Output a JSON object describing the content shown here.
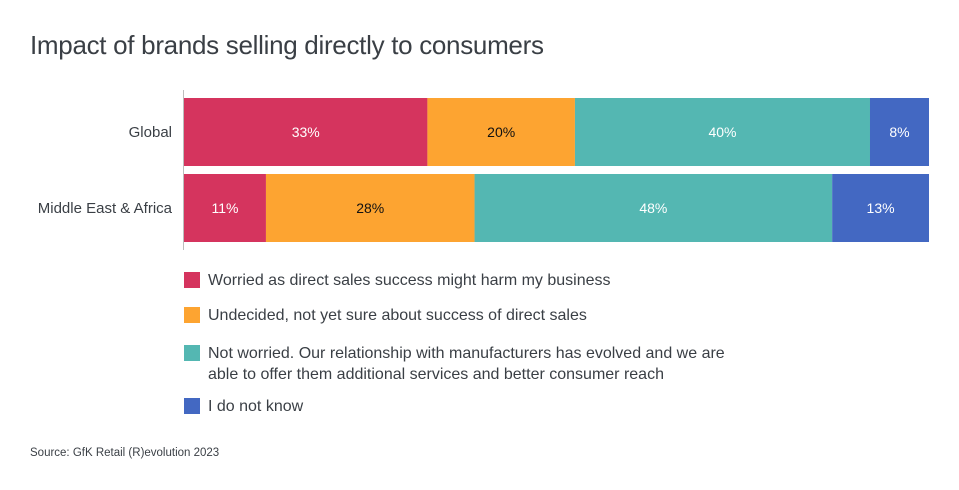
{
  "title": "Impact of brands selling directly to consumers",
  "source": "Source: GfK Retail (R)evolution 2023",
  "chart_data": {
    "type": "bar",
    "orientation": "horizontal",
    "stacked": true,
    "categories": [
      "Global",
      "Middle East & Africa"
    ],
    "series": [
      {
        "name": "Worried as direct sales success might harm my business",
        "values": [
          33,
          11
        ],
        "labels": [
          "33%",
          "11%"
        ],
        "color": "#d5345e",
        "label_color": "#ffffff"
      },
      {
        "name": "Undecided, not yet sure about success of direct sales",
        "values": [
          20,
          28
        ],
        "labels": [
          "20%",
          "28%"
        ],
        "color": "#fda431",
        "label_color": "#111111"
      },
      {
        "name": "Not worried. Our relationship with manufacturers has evolved and we are able to offer them additional services and better consumer reach",
        "values": [
          40,
          48
        ],
        "labels": [
          "40%",
          "48%"
        ],
        "color": "#54b7b2",
        "label_color": "#ffffff"
      },
      {
        "name": "I do not know",
        "values": [
          8,
          13
        ],
        "labels": [
          "8%",
          "13%"
        ],
        "color": "#4368c2",
        "label_color": "#ffffff"
      }
    ],
    "legend_position": "bottom-left",
    "grid": false
  }
}
